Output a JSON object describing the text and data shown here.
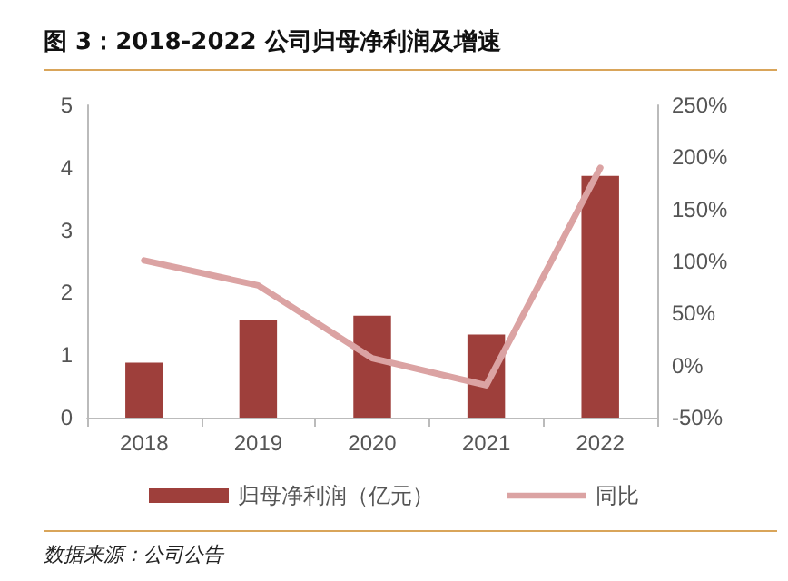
{
  "chart_data": {
    "type": "bar",
    "title": "图 3：2018-2022 公司归母净利润及增速",
    "categories": [
      "2018",
      "2019",
      "2020",
      "2021",
      "2022"
    ],
    "series": [
      {
        "name": "归母净利润（亿元）",
        "color": "#9e3f3b",
        "values": [
          0.88,
          1.56,
          1.63,
          1.33,
          3.87
        ]
      },
      {
        "name": "同比",
        "type": "line",
        "axis": "y2",
        "color": "#dba3a3",
        "values": [
          101,
          77,
          7,
          -19,
          190
        ]
      }
    ],
    "ylim": [
      0,
      5
    ],
    "yticks": [
      0,
      1,
      2,
      3,
      4,
      5
    ],
    "y2lim": [
      -50,
      250
    ],
    "y2ticks": [
      {
        "value": -50,
        "label": "-50%"
      },
      {
        "value": 0,
        "label": "0%"
      },
      {
        "value": 50,
        "label": "50%"
      },
      {
        "value": 100,
        "label": "100%"
      },
      {
        "value": 150,
        "label": "150%"
      },
      {
        "value": 200,
        "label": "200%"
      },
      {
        "value": 250,
        "label": "250%"
      }
    ],
    "grid": false,
    "legend": "bottom",
    "marker": "none",
    "line_style": "solid",
    "annotations": [
      "数据来源：公司公告"
    ]
  }
}
